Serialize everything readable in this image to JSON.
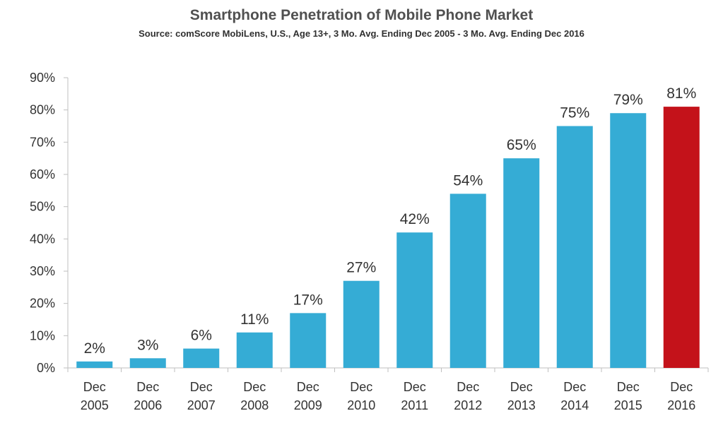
{
  "chart_data": {
    "type": "bar",
    "title": "Smartphone Penetration of Mobile Phone Market",
    "subtitle": "Source: comScore MobiLens, U.S., Age 13+, 3 Mo. Avg. Ending Dec 2005 - 3 Mo. Avg. Ending Dec 2016",
    "xlabel": "",
    "ylabel": "",
    "ylim": [
      0,
      90
    ],
    "yticks": [
      "0%",
      "10%",
      "20%",
      "30%",
      "40%",
      "50%",
      "60%",
      "70%",
      "80%",
      "90%"
    ],
    "grid": false,
    "categories": [
      [
        "Dec",
        "2005"
      ],
      [
        "Dec",
        "2006"
      ],
      [
        "Dec",
        "2007"
      ],
      [
        "Dec",
        "2008"
      ],
      [
        "Dec",
        "2009"
      ],
      [
        "Dec",
        "2010"
      ],
      [
        "Dec",
        "2011"
      ],
      [
        "Dec",
        "2012"
      ],
      [
        "Dec",
        "2013"
      ],
      [
        "Dec",
        "2014"
      ],
      [
        "Dec",
        "2015"
      ],
      [
        "Dec",
        "2016"
      ]
    ],
    "values": [
      2,
      3,
      6,
      11,
      17,
      27,
      42,
      54,
      65,
      75,
      79,
      81
    ],
    "data_labels": [
      "2%",
      "3%",
      "6%",
      "11%",
      "17%",
      "27%",
      "42%",
      "54%",
      "65%",
      "75%",
      "79%",
      "81%"
    ],
    "colors": {
      "bar": "#35acd5",
      "highlight_bar": "#c4121a",
      "axis": "#bfbfbf"
    },
    "highlight_index": 11
  }
}
